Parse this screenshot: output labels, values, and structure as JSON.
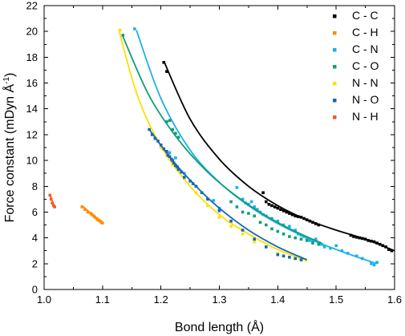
{
  "chart_data": {
    "type": "scatter",
    "title": "",
    "xlabel": "Bond length (Å)",
    "ylabel_main": "Force constant (mDyn Å",
    "ylabel_sup": "-1",
    "ylabel_close": ")",
    "xlim": [
      1.0,
      1.6
    ],
    "ylim": [
      0,
      22
    ],
    "xticks": [
      "1.0",
      "1.1",
      "1.2",
      "1.3",
      "1.4",
      "1.5",
      "1.6"
    ],
    "yticks": [
      "0",
      "2",
      "4",
      "6",
      "8",
      "10",
      "12",
      "14",
      "16",
      "18",
      "20",
      "22"
    ],
    "legend_position": "top-right",
    "grid": false,
    "series": [
      {
        "name": "C - C",
        "color": "#000000",
        "points": [
          [
            1.205,
            17.6
          ],
          [
            1.21,
            16.9
          ],
          [
            1.375,
            7.5
          ],
          [
            1.38,
            6.8
          ],
          [
            1.385,
            6.6
          ],
          [
            1.39,
            6.5
          ],
          [
            1.395,
            6.4
          ],
          [
            1.4,
            6.3
          ],
          [
            1.405,
            6.2
          ],
          [
            1.41,
            6.1
          ],
          [
            1.415,
            6.0
          ],
          [
            1.42,
            5.9
          ],
          [
            1.425,
            5.8
          ],
          [
            1.43,
            5.7
          ],
          [
            1.435,
            5.65
          ],
          [
            1.44,
            5.6
          ],
          [
            1.445,
            5.5
          ],
          [
            1.45,
            5.4
          ],
          [
            1.455,
            5.3
          ],
          [
            1.46,
            5.2
          ],
          [
            1.465,
            5.1
          ],
          [
            1.47,
            5.0
          ],
          [
            1.525,
            4.2
          ],
          [
            1.53,
            4.1
          ],
          [
            1.535,
            4.05
          ],
          [
            1.54,
            4.0
          ],
          [
            1.545,
            3.95
          ],
          [
            1.55,
            3.9
          ],
          [
            1.555,
            3.8
          ],
          [
            1.56,
            3.75
          ],
          [
            1.565,
            3.7
          ],
          [
            1.57,
            3.6
          ],
          [
            1.575,
            3.5
          ],
          [
            1.58,
            3.4
          ],
          [
            1.585,
            3.3
          ],
          [
            1.59,
            3.1
          ],
          [
            1.595,
            3.0
          ]
        ],
        "curve": [
          [
            1.205,
            17.7
          ],
          [
            1.25,
            13.2
          ],
          [
            1.3,
            10.1
          ],
          [
            1.35,
            8.0
          ],
          [
            1.4,
            6.5
          ],
          [
            1.45,
            5.4
          ],
          [
            1.5,
            4.6
          ],
          [
            1.55,
            3.9
          ],
          [
            1.6,
            3.0
          ]
        ]
      },
      {
        "name": "C - H",
        "color": "#ff8c00",
        "points": [
          [
            1.065,
            6.4
          ],
          [
            1.07,
            6.2
          ],
          [
            1.075,
            6.0
          ],
          [
            1.08,
            5.9
          ],
          [
            1.082,
            5.8
          ],
          [
            1.085,
            5.7
          ],
          [
            1.087,
            5.6
          ],
          [
            1.09,
            5.5
          ],
          [
            1.092,
            5.4
          ],
          [
            1.094,
            5.35
          ],
          [
            1.096,
            5.3
          ],
          [
            1.098,
            5.2
          ],
          [
            1.1,
            5.15
          ]
        ],
        "curve": [
          [
            1.065,
            6.5
          ],
          [
            1.1,
            5.1
          ]
        ]
      },
      {
        "name": "C - N",
        "color": "#1ab2e8",
        "points": [
          [
            1.155,
            20.2
          ],
          [
            1.215,
            10.6
          ],
          [
            1.225,
            10.2
          ],
          [
            1.24,
            9.0
          ],
          [
            1.29,
            6.9
          ],
          [
            1.3,
            6.3
          ],
          [
            1.33,
            7.9
          ],
          [
            1.34,
            7.0
          ],
          [
            1.345,
            6.7
          ],
          [
            1.35,
            6.6
          ],
          [
            1.355,
            6.8
          ],
          [
            1.36,
            6.4
          ],
          [
            1.365,
            6.2
          ],
          [
            1.37,
            6.0
          ],
          [
            1.375,
            5.8
          ],
          [
            1.38,
            5.7
          ],
          [
            1.39,
            5.5
          ],
          [
            1.4,
            5.3
          ],
          [
            1.41,
            5.0
          ],
          [
            1.42,
            4.9
          ],
          [
            1.43,
            4.6
          ],
          [
            1.435,
            4.3
          ],
          [
            1.44,
            4.2
          ],
          [
            1.445,
            4.1
          ],
          [
            1.45,
            4.0
          ],
          [
            1.455,
            3.8
          ],
          [
            1.46,
            3.7
          ],
          [
            1.465,
            3.9
          ],
          [
            1.47,
            3.6
          ],
          [
            1.475,
            3.5
          ],
          [
            1.48,
            3.3
          ],
          [
            1.49,
            3.2
          ],
          [
            1.5,
            3.4
          ],
          [
            1.51,
            3.0
          ],
          [
            1.52,
            2.8
          ],
          [
            1.535,
            2.6
          ],
          [
            1.545,
            2.4
          ],
          [
            1.56,
            2.0
          ],
          [
            1.565,
            1.9
          ],
          [
            1.57,
            2.1
          ]
        ],
        "curve": [
          [
            1.158,
            20.1
          ],
          [
            1.2,
            14.8
          ],
          [
            1.25,
            10.8
          ],
          [
            1.3,
            8.3
          ],
          [
            1.35,
            6.5
          ],
          [
            1.4,
            5.1
          ],
          [
            1.45,
            4.0
          ],
          [
            1.5,
            3.1
          ],
          [
            1.55,
            2.3
          ],
          [
            1.57,
            2.0
          ]
        ]
      },
      {
        "name": "C - O",
        "color": "#119e7a",
        "points": [
          [
            1.135,
            19.7
          ],
          [
            1.21,
            13.0
          ],
          [
            1.215,
            13.1
          ],
          [
            1.22,
            12.4
          ],
          [
            1.225,
            12.1
          ],
          [
            1.23,
            11.8
          ],
          [
            1.32,
            6.8
          ],
          [
            1.33,
            6.4
          ],
          [
            1.34,
            6.0
          ],
          [
            1.35,
            5.9
          ],
          [
            1.36,
            5.7
          ],
          [
            1.37,
            5.2
          ],
          [
            1.38,
            5.0
          ],
          [
            1.39,
            4.7
          ],
          [
            1.4,
            4.5
          ],
          [
            1.41,
            4.3
          ],
          [
            1.42,
            4.1
          ],
          [
            1.43,
            4.0
          ],
          [
            1.44,
            3.9
          ],
          [
            1.45,
            3.8
          ],
          [
            1.46,
            3.6
          ],
          [
            1.47,
            3.5
          ]
        ],
        "curve": [
          [
            1.135,
            19.6
          ],
          [
            1.18,
            15.0
          ],
          [
            1.23,
            11.6
          ],
          [
            1.28,
            9.1
          ],
          [
            1.33,
            7.2
          ],
          [
            1.38,
            5.7
          ],
          [
            1.43,
            4.5
          ],
          [
            1.475,
            3.6
          ]
        ]
      },
      {
        "name": "N - N",
        "color": "#ffe000",
        "points": [
          [
            1.13,
            20.1
          ],
          [
            1.2,
            11.0
          ],
          [
            1.21,
            10.4
          ],
          [
            1.22,
            9.7
          ],
          [
            1.24,
            8.6
          ],
          [
            1.26,
            7.5
          ],
          [
            1.28,
            6.5
          ],
          [
            1.3,
            5.6
          ],
          [
            1.32,
            4.9
          ],
          [
            1.34,
            4.3
          ],
          [
            1.36,
            3.7
          ],
          [
            1.38,
            3.3
          ],
          [
            1.4,
            2.8
          ],
          [
            1.42,
            2.5
          ],
          [
            1.44,
            2.3
          ]
        ],
        "curve": [
          [
            1.128,
            20.1
          ],
          [
            1.16,
            15.0
          ],
          [
            1.2,
            11.1
          ],
          [
            1.25,
            8.0
          ],
          [
            1.3,
            5.8
          ],
          [
            1.35,
            4.3
          ],
          [
            1.4,
            3.1
          ],
          [
            1.45,
            2.2
          ]
        ]
      },
      {
        "name": "N - O",
        "color": "#1467b8",
        "points": [
          [
            1.18,
            12.4
          ],
          [
            1.185,
            12.0
          ],
          [
            1.19,
            11.7
          ],
          [
            1.195,
            11.5
          ],
          [
            1.2,
            11.2
          ],
          [
            1.205,
            10.9
          ],
          [
            1.21,
            10.7
          ],
          [
            1.212,
            10.4
          ],
          [
            1.215,
            10.3
          ],
          [
            1.218,
            10.1
          ],
          [
            1.22,
            10.0
          ],
          [
            1.222,
            9.8
          ],
          [
            1.225,
            9.6
          ],
          [
            1.228,
            9.5
          ],
          [
            1.23,
            9.3
          ],
          [
            1.235,
            9.1
          ],
          [
            1.24,
            8.7
          ],
          [
            1.25,
            8.4
          ],
          [
            1.255,
            8.2
          ],
          [
            1.26,
            8.0
          ],
          [
            1.27,
            7.5
          ],
          [
            1.28,
            7.0
          ],
          [
            1.3,
            6.1
          ],
          [
            1.32,
            5.3
          ],
          [
            1.34,
            4.6
          ],
          [
            1.36,
            3.9
          ],
          [
            1.38,
            3.3
          ],
          [
            1.4,
            2.7
          ],
          [
            1.41,
            2.6
          ],
          [
            1.42,
            2.5
          ],
          [
            1.43,
            2.4
          ],
          [
            1.44,
            2.3
          ]
        ],
        "curve": [
          [
            1.18,
            12.4
          ],
          [
            1.22,
            10.0
          ],
          [
            1.26,
            8.0
          ],
          [
            1.3,
            6.3
          ],
          [
            1.35,
            4.6
          ],
          [
            1.4,
            3.3
          ],
          [
            1.45,
            2.3
          ]
        ]
      },
      {
        "name": "N - H",
        "color": "#f05a28",
        "points": [
          [
            1.01,
            7.3
          ],
          [
            1.012,
            7.0
          ],
          [
            1.014,
            6.7
          ],
          [
            1.016,
            6.5
          ],
          [
            1.018,
            6.4
          ]
        ],
        "curve": [
          [
            1.01,
            7.35
          ],
          [
            1.018,
            6.35
          ]
        ]
      }
    ]
  }
}
